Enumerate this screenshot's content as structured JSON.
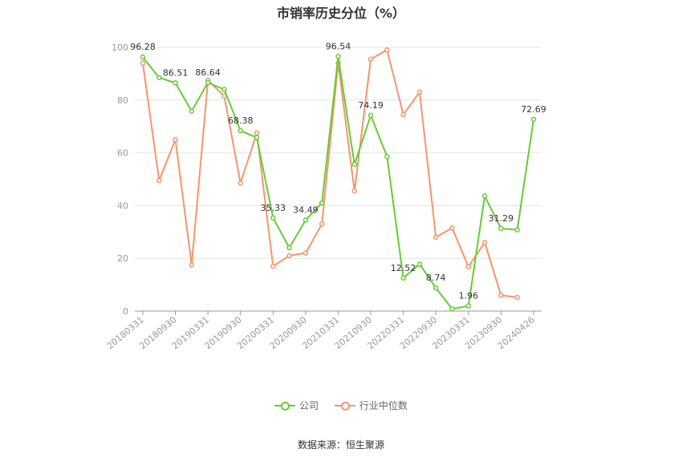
{
  "chart_data": {
    "type": "line",
    "title": "市销率历史分位（%）",
    "source": "数据来源：恒生聚源",
    "ylim": [
      0,
      100
    ],
    "yticks": [
      0,
      20,
      40,
      60,
      80,
      100
    ],
    "grid": true,
    "legend_position": "bottom",
    "x": [
      "20180331",
      "20180630",
      "20180930",
      "20181231",
      "20190331",
      "20190630",
      "20190930",
      "20191231",
      "20200331",
      "20200630",
      "20200930",
      "20201231",
      "20210331",
      "20210630",
      "20210930",
      "20211231",
      "20220331",
      "20220630",
      "20220930",
      "20221231",
      "20230331",
      "20230630",
      "20230930",
      "20231231",
      "20240426"
    ],
    "xtick_labels": [
      "20180331",
      "20180930",
      "20190331",
      "20190930",
      "20200331",
      "20200930",
      "20210331",
      "20210930",
      "20220331",
      "20220930",
      "20230331",
      "20230930",
      "20240426"
    ],
    "series": [
      {
        "name": "公司",
        "color": "#66cc33",
        "values": [
          96.28,
          88.5,
          86.51,
          75.8,
          86.64,
          84.0,
          68.38,
          65.8,
          35.33,
          24.0,
          34.49,
          41.0,
          96.54,
          55.6,
          74.19,
          58.6,
          12.52,
          17.8,
          8.74,
          0.8,
          1.96,
          43.6,
          31.29,
          30.8,
          72.69
        ],
        "labels": {
          "0": "96.28",
          "2": "86.51",
          "4": "86.64",
          "6": "68.38",
          "8": "35.33",
          "10": "34.49",
          "12": "96.54",
          "14": "74.19",
          "16": "12.52",
          "18": "8.74",
          "20": "1.96",
          "22": "31.29",
          "24": "72.69"
        }
      },
      {
        "name": "行业中位数",
        "color": "#f5956b",
        "values": [
          94.0,
          49.5,
          65.0,
          17.5,
          87.5,
          81.5,
          48.5,
          67.5,
          17.0,
          21.0,
          22.0,
          33.0,
          94.0,
          45.5,
          95.5,
          99.0,
          74.5,
          83.0,
          28.0,
          31.5,
          16.8,
          26.0,
          6.0,
          5.2,
          null
        ]
      }
    ]
  }
}
